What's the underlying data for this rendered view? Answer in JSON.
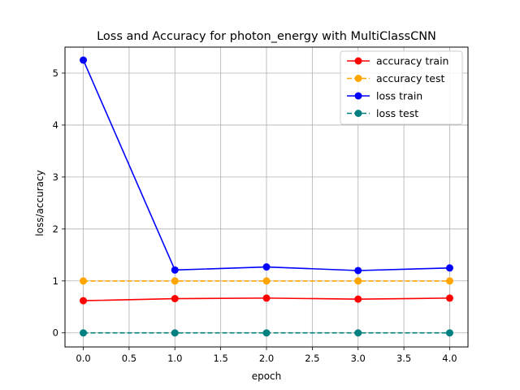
{
  "chart_data": {
    "type": "line",
    "title": "Loss and Accuracy for photon_energy with MultiClassCNN",
    "xlabel": "epoch",
    "ylabel": "loss/accuracy",
    "xlim": [
      -0.2,
      4.2
    ],
    "ylim": [
      -0.27,
      5.5
    ],
    "xticks": [
      0.0,
      0.5,
      1.0,
      1.5,
      2.0,
      2.5,
      3.0,
      3.5,
      4.0
    ],
    "xtick_labels": [
      "0.0",
      "0.5",
      "1.0",
      "1.5",
      "2.0",
      "2.5",
      "3.0",
      "3.5",
      "4.0"
    ],
    "yticks": [
      0,
      1,
      2,
      3,
      4,
      5
    ],
    "ytick_labels": [
      "0",
      "1",
      "2",
      "3",
      "4",
      "5"
    ],
    "grid": true,
    "legend_position": "top-right",
    "x": [
      0,
      1,
      2,
      3,
      4
    ],
    "series": [
      {
        "name": "accuracy train",
        "values": [
          0.62,
          0.66,
          0.67,
          0.65,
          0.67
        ],
        "color": "#ff0000",
        "dashed": false
      },
      {
        "name": "accuracy test",
        "values": [
          1.0,
          1.0,
          1.0,
          1.0,
          1.0
        ],
        "color": "#ffa500",
        "dashed": true
      },
      {
        "name": "loss train",
        "values": [
          5.25,
          1.21,
          1.27,
          1.2,
          1.25
        ],
        "color": "#0000ff",
        "dashed": false
      },
      {
        "name": "loss test",
        "values": [
          0.0,
          0.0,
          0.0,
          0.0,
          0.0
        ],
        "color": "#008080",
        "dashed": true
      }
    ]
  }
}
